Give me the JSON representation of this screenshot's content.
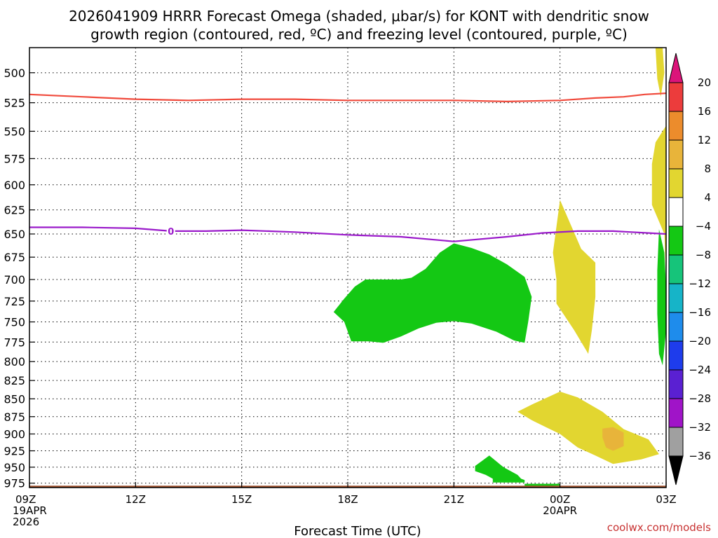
{
  "chart_data": {
    "type": "time-height cross section",
    "title": "2026041909 HRRR Forecast Omega (shaded, μbar/s) for KONT with dendritic snow growth region (contoured, red, ºC) and freezing level (contoured, purple, ºC)",
    "title_lines": [
      "2026041909 HRRR Forecast Omega (shaded, μbar/s) for KONT with dendritic snow",
      "growth region (contoured, red, ºC) and freezing level (contoured, purple, ºC)"
    ],
    "xlabel": "Forecast Time (UTC)",
    "ylabel": "",
    "credit": "coolwx.com/models",
    "x_range": [
      0,
      18
    ],
    "x_units": "hours after 2026-04-19 09Z",
    "x_ticks": [
      {
        "hour": 0,
        "label": "09Z",
        "sub": [
          "19APR",
          "2026"
        ]
      },
      {
        "hour": 3,
        "label": "12Z",
        "sub": []
      },
      {
        "hour": 6,
        "label": "15Z",
        "sub": []
      },
      {
        "hour": 9,
        "label": "18Z",
        "sub": []
      },
      {
        "hour": 12,
        "label": "21Z",
        "sub": []
      },
      {
        "hour": 15,
        "label": "00Z",
        "sub": [
          "20APR"
        ]
      },
      {
        "hour": 18,
        "label": "03Z",
        "sub": []
      }
    ],
    "y_scale": "log-pressure",
    "y_range_mb": [
      982,
      480
    ],
    "y_ticks": [
      500,
      525,
      550,
      575,
      600,
      625,
      650,
      675,
      700,
      725,
      750,
      775,
      800,
      825,
      850,
      875,
      900,
      925,
      950,
      975
    ],
    "grid": true,
    "colorbar": {
      "labels": [
        "20",
        "16",
        "12",
        "8",
        "4",
        "−4",
        "−8",
        "−12",
        "−16",
        "−20",
        "−24",
        "−28",
        "−32",
        "−36"
      ],
      "colors": [
        "#ec3c3c",
        "#ec8c2c",
        "#e8b43a",
        "#e2d630",
        "#ffffff",
        "#14c814",
        "#16c47a",
        "#16b4c8",
        "#1e8cec",
        "#1e3cec",
        "#5a20d2",
        "#a014c8",
        "#a0a0a0"
      ],
      "top_arrow_color": "#dc147a",
      "bottom_arrow_color": "#000000"
    },
    "series": [
      {
        "name": "dendritic snow growth region",
        "color": "#f04a3c",
        "points": [
          [
            0,
            518
          ],
          [
            1.5,
            520
          ],
          [
            3,
            522
          ],
          [
            4.5,
            523
          ],
          [
            6,
            522
          ],
          [
            7.5,
            522
          ],
          [
            9,
            523
          ],
          [
            10.5,
            523
          ],
          [
            12,
            523
          ],
          [
            13.5,
            524
          ],
          [
            15,
            523
          ],
          [
            16,
            521
          ],
          [
            16.8,
            520
          ],
          [
            17.4,
            518
          ],
          [
            18,
            517
          ]
        ]
      },
      {
        "name": "freezing level",
        "color": "#9a1aca",
        "label": "0",
        "label_at": [
          4,
          647
        ],
        "points": [
          [
            0,
            643
          ],
          [
            1.5,
            643
          ],
          [
            3,
            644
          ],
          [
            4,
            647
          ],
          [
            5,
            647
          ],
          [
            6,
            646
          ],
          [
            7.5,
            648
          ],
          [
            9,
            651
          ],
          [
            10.5,
            653
          ],
          [
            12,
            658
          ],
          [
            13.5,
            653
          ],
          [
            14.5,
            649
          ],
          [
            15.5,
            647
          ],
          [
            16.5,
            647
          ],
          [
            17.5,
            649
          ],
          [
            18,
            650
          ]
        ]
      }
    ],
    "omega_regions": [
      {
        "bin": "-8 to -4",
        "color": "#14c814",
        "points": [
          [
            9.5,
            700
          ],
          [
            10.5,
            700
          ],
          [
            10.8,
            698
          ],
          [
            11.2,
            688
          ],
          [
            11.6,
            670
          ],
          [
            12,
            660
          ],
          [
            12.5,
            665
          ],
          [
            13,
            672
          ],
          [
            13.5,
            683
          ],
          [
            14,
            697
          ],
          [
            14.2,
            720
          ],
          [
            14.1,
            750
          ],
          [
            14,
            776
          ],
          [
            13.7,
            773
          ],
          [
            13.2,
            762
          ],
          [
            12.5,
            752
          ],
          [
            12,
            749
          ],
          [
            11.5,
            751
          ],
          [
            11,
            758
          ],
          [
            10.5,
            768
          ],
          [
            10,
            776
          ],
          [
            9.6,
            774
          ],
          [
            9.1,
            774
          ],
          [
            8.9,
            750
          ],
          [
            8.6,
            738
          ],
          [
            8.9,
            722
          ],
          [
            9.2,
            708
          ]
        ]
      },
      {
        "bin": "-8 to -4",
        "color": "#14c814",
        "points": [
          [
            17.8,
            645
          ],
          [
            17.95,
            670
          ],
          [
            18,
            710
          ],
          [
            18,
            760
          ],
          [
            17.9,
            805
          ],
          [
            17.8,
            790
          ],
          [
            17.75,
            740
          ],
          [
            17.75,
            690
          ]
        ]
      },
      {
        "bin": "-8 to -4",
        "color": "#14c814",
        "points": [
          [
            12.6,
            948
          ],
          [
            12.8,
            940
          ],
          [
            13.0,
            932
          ],
          [
            13.4,
            950
          ],
          [
            13.8,
            962
          ],
          [
            13.9,
            968
          ],
          [
            14.0,
            970
          ],
          [
            14.0,
            974
          ],
          [
            13.1,
            974
          ],
          [
            13.1,
            968
          ],
          [
            12.9,
            962
          ],
          [
            12.6,
            956
          ]
        ]
      },
      {
        "bin": "-8 to -4",
        "color": "#14c814",
        "points": [
          [
            14.0,
            976
          ],
          [
            15,
            976
          ],
          [
            15,
            979
          ],
          [
            14.0,
            980
          ]
        ]
      },
      {
        "bin": "4 to 8",
        "color": "#e2d630",
        "points": [
          [
            15,
            615
          ],
          [
            15.3,
            640
          ],
          [
            15.6,
            666
          ],
          [
            16,
            681
          ],
          [
            16,
            720
          ],
          [
            15.9,
            760
          ],
          [
            15.8,
            790
          ],
          [
            15.4,
            760
          ],
          [
            14.9,
            728
          ],
          [
            14.9,
            700
          ],
          [
            14.8,
            670
          ]
        ]
      },
      {
        "bin": "4 to 8",
        "color": "#e2d630",
        "points": [
          [
            17.7,
            480
          ],
          [
            17.9,
            480
          ],
          [
            17.95,
            500
          ],
          [
            17.85,
            520
          ],
          [
            17.75,
            505
          ]
        ]
      },
      {
        "bin": "4 to 8",
        "color": "#e2d630",
        "points": [
          [
            18,
            545
          ],
          [
            18.2,
            540
          ],
          [
            18.2,
            730
          ],
          [
            18,
            700
          ],
          [
            17.95,
            650
          ],
          [
            17.6,
            620
          ],
          [
            17.6,
            580
          ],
          [
            17.7,
            560
          ]
        ]
      },
      {
        "bin": "4 to 8",
        "color": "#e2d630",
        "points": [
          [
            13.8,
            868
          ],
          [
            14.2,
            858
          ],
          [
            15,
            840
          ],
          [
            15.5,
            848
          ],
          [
            16.2,
            868
          ],
          [
            16.8,
            893
          ],
          [
            17.5,
            908
          ],
          [
            17.8,
            930
          ],
          [
            17.3,
            938
          ],
          [
            16.5,
            945
          ],
          [
            16,
            932
          ],
          [
            15.5,
            920
          ],
          [
            15,
            900
          ],
          [
            14.6,
            890
          ],
          [
            14.2,
            880
          ]
        ]
      },
      {
        "bin": "8 to 12",
        "color": "#e8b43a",
        "points": [
          [
            16.2,
            892
          ],
          [
            16.5,
            890
          ],
          [
            16.8,
            898
          ],
          [
            16.8,
            918
          ],
          [
            16.5,
            925
          ],
          [
            16.3,
            920
          ],
          [
            16.2,
            905
          ]
        ]
      }
    ],
    "ground": {
      "color": "#a0522d",
      "pressure_mb": 979
    }
  }
}
